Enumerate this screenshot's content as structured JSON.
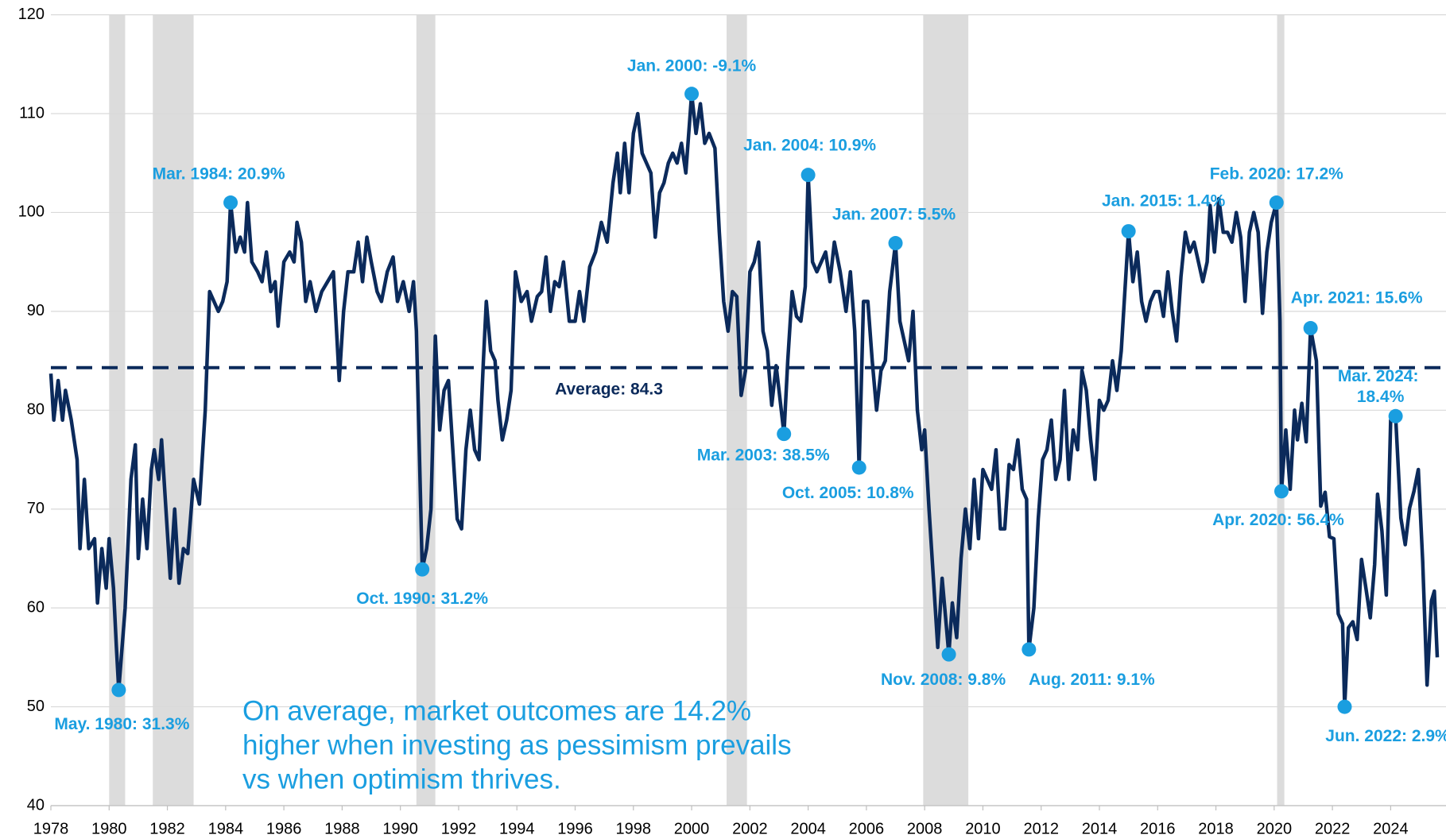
{
  "chart_data": {
    "type": "line",
    "color": "#0b2a5b",
    "marker_color": "#1a9ee0",
    "shade_color": "#dcdcdc",
    "grid": true,
    "xlim": [
      1978,
      2025.9
    ],
    "xticks": [
      1978,
      1980,
      1982,
      1984,
      1986,
      1988,
      1990,
      1992,
      1994,
      1996,
      1998,
      2000,
      2002,
      2004,
      2006,
      2008,
      2010,
      2012,
      2014,
      2016,
      2018,
      2020,
      2022,
      2024
    ],
    "ylim": [
      40,
      120
    ],
    "yticks": [
      40,
      50,
      60,
      70,
      80,
      90,
      100,
      110,
      120
    ],
    "shaded_ranges": [
      [
        1980.0,
        1980.55
      ],
      [
        1981.5,
        1982.9
      ],
      [
        1990.55,
        1991.2
      ],
      [
        2001.2,
        2001.9
      ],
      [
        2007.95,
        2009.5
      ],
      [
        2020.1,
        2020.35
      ]
    ],
    "average": {
      "value": 84.3,
      "label": "Average: 84.3"
    },
    "note_lines": [
      "On average, market outcomes are 14.2%",
      "higher when investing as pessimism prevails",
      "vs when optimism thrives."
    ],
    "x": [
      1978.0,
      1978.1,
      1978.25,
      1978.4,
      1978.5,
      1978.7,
      1978.9,
      1979.0,
      1979.15,
      1979.3,
      1979.5,
      1979.6,
      1979.75,
      1979.9,
      1980.0,
      1980.15,
      1980.25,
      1980.33,
      1980.55,
      1980.75,
      1980.9,
      1981.0,
      1981.15,
      1981.3,
      1981.45,
      1981.55,
      1981.7,
      1981.8,
      1981.95,
      1982.1,
      1982.25,
      1982.4,
      1982.55,
      1982.7,
      1982.9,
      1983.1,
      1983.3,
      1983.45,
      1983.6,
      1983.75,
      1983.9,
      1984.05,
      1984.17,
      1984.35,
      1984.5,
      1984.65,
      1984.75,
      1984.9,
      1985.1,
      1985.25,
      1985.4,
      1985.55,
      1985.7,
      1985.8,
      1986.0,
      1986.2,
      1986.35,
      1986.45,
      1986.6,
      1986.75,
      1986.9,
      1987.1,
      1987.3,
      1987.5,
      1987.7,
      1987.9,
      1988.05,
      1988.2,
      1988.4,
      1988.55,
      1988.7,
      1988.85,
      1989.0,
      1989.2,
      1989.35,
      1989.55,
      1989.75,
      1989.9,
      1990.1,
      1990.3,
      1990.45,
      1990.55,
      1990.65,
      1990.75,
      1990.9,
      1991.05,
      1991.2,
      1991.35,
      1991.5,
      1991.65,
      1991.8,
      1991.95,
      1992.1,
      1992.25,
      1992.4,
      1992.55,
      1992.7,
      1992.85,
      1992.95,
      1993.1,
      1993.25,
      1993.35,
      1993.5,
      1993.65,
      1993.8,
      1993.95,
      1994.15,
      1994.35,
      1994.5,
      1994.7,
      1994.85,
      1995.0,
      1995.15,
      1995.3,
      1995.45,
      1995.6,
      1995.8,
      1996.0,
      1996.15,
      1996.3,
      1996.5,
      1996.7,
      1996.9,
      1997.1,
      1997.3,
      1997.45,
      1997.55,
      1997.7,
      1997.85,
      1998.0,
      1998.15,
      1998.3,
      1998.45,
      1998.6,
      1998.75,
      1998.9,
      1999.05,
      1999.2,
      1999.35,
      1999.5,
      1999.65,
      1999.8,
      2000.0,
      2000.15,
      2000.3,
      2000.45,
      2000.6,
      2000.8,
      2000.95,
      2001.1,
      2001.25,
      2001.4,
      2001.55,
      2001.7,
      2001.85,
      2002.0,
      2002.15,
      2002.3,
      2002.45,
      2002.6,
      2002.75,
      2002.9,
      2003.0,
      2003.17,
      2003.3,
      2003.45,
      2003.6,
      2003.75,
      2003.9,
      2004.0,
      2004.15,
      2004.3,
      2004.45,
      2004.6,
      2004.75,
      2004.9,
      2005.1,
      2005.3,
      2005.45,
      2005.6,
      2005.7,
      2005.75,
      2005.9,
      2006.05,
      2006.2,
      2006.35,
      2006.5,
      2006.65,
      2006.8,
      2007.0,
      2007.15,
      2007.3,
      2007.45,
      2007.6,
      2007.75,
      2007.9,
      2008.0,
      2008.15,
      2008.3,
      2008.45,
      2008.6,
      2008.75,
      2008.83,
      2008.95,
      2009.1,
      2009.25,
      2009.4,
      2009.55,
      2009.7,
      2009.85,
      2010.0,
      2010.15,
      2010.3,
      2010.45,
      2010.6,
      2010.75,
      2010.9,
      2011.05,
      2011.2,
      2011.35,
      2011.5,
      2011.58,
      2011.75,
      2011.9,
      2012.05,
      2012.2,
      2012.35,
      2012.5,
      2012.65,
      2012.8,
      2012.95,
      2013.1,
      2013.25,
      2013.4,
      2013.55,
      2013.7,
      2013.85,
      2014.0,
      2014.15,
      2014.3,
      2014.45,
      2014.6,
      2014.75,
      2015.0,
      2015.15,
      2015.3,
      2015.45,
      2015.6,
      2015.75,
      2015.9,
      2016.05,
      2016.2,
      2016.35,
      2016.5,
      2016.65,
      2016.8,
      2016.95,
      2017.1,
      2017.25,
      2017.4,
      2017.55,
      2017.7,
      2017.8,
      2017.95,
      2018.1,
      2018.25,
      2018.4,
      2018.55,
      2018.7,
      2018.85,
      2019.0,
      2019.15,
      2019.3,
      2019.45,
      2019.6,
      2019.75,
      2019.9,
      2020.08,
      2020.2,
      2020.25,
      2020.4,
      2020.55,
      2020.7,
      2020.8,
      2020.95,
      2021.1,
      2021.25,
      2021.45,
      2021.6,
      2021.75,
      2021.9,
      2022.05,
      2022.2,
      2022.35,
      2022.42,
      2022.55,
      2022.7,
      2022.85,
      2023.0,
      2023.15,
      2023.3,
      2023.45,
      2023.55,
      2023.7,
      2023.85,
      2024.0,
      2024.17,
      2024.35,
      2024.5,
      2024.65,
      2024.8,
      2024.95,
      2025.1,
      2025.25,
      2025.4,
      2025.5,
      2025.6
    ],
    "values": [
      83.7,
      79,
      83,
      79,
      82,
      79,
      75,
      66,
      73,
      66,
      67,
      60.5,
      66,
      62,
      67,
      62,
      56,
      51.7,
      60,
      73,
      76.5,
      65,
      71,
      66,
      74,
      76,
      73,
      77,
      70,
      63,
      70,
      62.5,
      66,
      65.5,
      73,
      70.5,
      80,
      92,
      91,
      90,
      91,
      93,
      101.0,
      96,
      97.5,
      96,
      101,
      95,
      94,
      93,
      96,
      92,
      93,
      88.5,
      95,
      96,
      95,
      99,
      97,
      91,
      93,
      90,
      92,
      93,
      94,
      83,
      90,
      94,
      94,
      97,
      93,
      97.5,
      95,
      92,
      91,
      94,
      95.5,
      91,
      93,
      90,
      93,
      88,
      76,
      63.9,
      66,
      70,
      87.5,
      78,
      82,
      83,
      76,
      69,
      68,
      76,
      80,
      76,
      75,
      85,
      91,
      86,
      85,
      81,
      77,
      79,
      82,
      94,
      91,
      92,
      89,
      91.5,
      92,
      95.5,
      90,
      93,
      92.5,
      95,
      89,
      89,
      92,
      89,
      94.5,
      96,
      99,
      97,
      103,
      106,
      102,
      107,
      102,
      108,
      110,
      106,
      105,
      104,
      97.5,
      102,
      103,
      105,
      106,
      105,
      107,
      104,
      112.0,
      108,
      111,
      107,
      108,
      106.5,
      98,
      91,
      88,
      92,
      91.5,
      81.5,
      84,
      94,
      95,
      97,
      88,
      86,
      80.5,
      84.5,
      82,
      77.6,
      85,
      92,
      89.5,
      89,
      92.5,
      103.8,
      95,
      94,
      95,
      96,
      93,
      97,
      94,
      90,
      94,
      88,
      79,
      74.2,
      91,
      91,
      85,
      80,
      84,
      85,
      92,
      96.9,
      89,
      87,
      85,
      90,
      80,
      76,
      78,
      70,
      63,
      56,
      63,
      58,
      55.3,
      60.5,
      57,
      65,
      70,
      66,
      73,
      67,
      74,
      73,
      72,
      76,
      68,
      68,
      74.5,
      74,
      77,
      72,
      71,
      55.8,
      60,
      69,
      75,
      76,
      79,
      73,
      75,
      82,
      73,
      78,
      76,
      84,
      82,
      77,
      73,
      81,
      80,
      81,
      85,
      82,
      86,
      98.1,
      93,
      96,
      91,
      89,
      91,
      92,
      92,
      89.5,
      94,
      90,
      87,
      93.5,
      98,
      96,
      97,
      95,
      93,
      95,
      100.7,
      96,
      101.4,
      98,
      98,
      97,
      100,
      97.5,
      91,
      98,
      100,
      98,
      89.8,
      96,
      99,
      101.0,
      89,
      71.8,
      78,
      72,
      80,
      77,
      80.7,
      76.8,
      88.3,
      85,
      70.3,
      71.7,
      67.2,
      67,
      59.4,
      58.4,
      50.0,
      58,
      58.6,
      56.8,
      64.9,
      62,
      59,
      64.4,
      71.5,
      67.8,
      61.3,
      79,
      79.4,
      69.1,
      66.4,
      70.1,
      71.8,
      74,
      64.7,
      52.2,
      60.7,
      61.7,
      55
    ],
    "annotations": [
      {
        "x": 1980.33,
        "y": 51.7,
        "label": "May. 1980: 31.3%"
      },
      {
        "x": 1984.17,
        "y": 101.0,
        "label": "Mar. 1984: 20.9%"
      },
      {
        "x": 1990.75,
        "y": 63.9,
        "label": "Oct. 1990: 31.2%"
      },
      {
        "x": 2000.0,
        "y": 112.0,
        "label": "Jan. 2000: -9.1%"
      },
      {
        "x": 2003.17,
        "y": 77.6,
        "label": "Mar. 2003: 38.5%"
      },
      {
        "x": 2004.0,
        "y": 103.8,
        "label": "Jan. 2004: 10.9%"
      },
      {
        "x": 2005.75,
        "y": 74.2,
        "label": "Oct. 2005: 10.8%"
      },
      {
        "x": 2007.0,
        "y": 96.9,
        "label": "Jan. 2007: 5.5%"
      },
      {
        "x": 2008.83,
        "y": 55.3,
        "label": "Nov. 2008: 9.8%"
      },
      {
        "x": 2011.58,
        "y": 55.8,
        "label": "Aug. 2011: 9.1%"
      },
      {
        "x": 2015.0,
        "y": 98.1,
        "label": "Jan. 2015: 1.4%"
      },
      {
        "x": 2020.08,
        "y": 101.0,
        "label": "Feb. 2020: 17.2%"
      },
      {
        "x": 2020.25,
        "y": 71.8,
        "label": "Apr. 2020: 56.4%"
      },
      {
        "x": 2021.25,
        "y": 88.3,
        "label": "Apr. 2021: 15.6%"
      },
      {
        "x": 2022.42,
        "y": 50.0,
        "label": "Jun. 2022: 2.9%"
      },
      {
        "x": 2024.17,
        "y": 79.4,
        "label": "Mar. 2024: 18.4%"
      }
    ]
  }
}
